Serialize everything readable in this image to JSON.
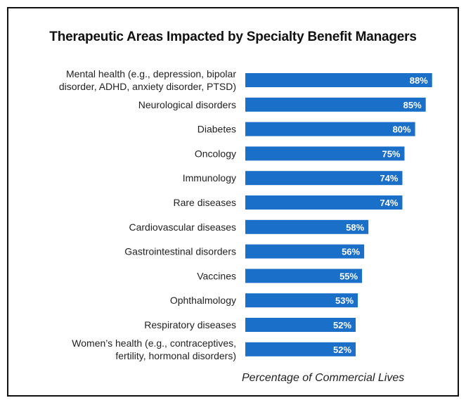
{
  "chart_data": {
    "type": "bar",
    "orientation": "horizontal",
    "title": "Therapeutic Areas Impacted by Specialty Benefit Managers",
    "xlabel": "Percentage of Commercial Lives",
    "ylabel": "",
    "xlim": [
      0,
      100
    ],
    "grid": false,
    "bar_color": "#1a6fc9",
    "categories": [
      [
        "Mental health (e.g., depression, bipolar",
        "disorder, ADHD, anxiety disorder, PTSD)"
      ],
      [
        "Neurological disorders"
      ],
      [
        "Diabetes"
      ],
      [
        "Oncology"
      ],
      [
        "Immunology"
      ],
      [
        "Rare diseases"
      ],
      [
        "Cardiovascular diseases"
      ],
      [
        "Gastrointestinal disorders"
      ],
      [
        "Vaccines"
      ],
      [
        "Ophthalmology"
      ],
      [
        "Respiratory diseases"
      ],
      [
        "Women’s health (e.g., contraceptives,",
        "fertility, hormonal disorders)"
      ]
    ],
    "values": [
      88,
      85,
      80,
      75,
      74,
      74,
      58,
      56,
      55,
      53,
      52,
      52
    ],
    "data_labels": [
      "88%",
      "85%",
      "80%",
      "75%",
      "74%",
      "74%",
      "58%",
      "56%",
      "55%",
      "53%",
      "52%",
      "52%"
    ]
  }
}
